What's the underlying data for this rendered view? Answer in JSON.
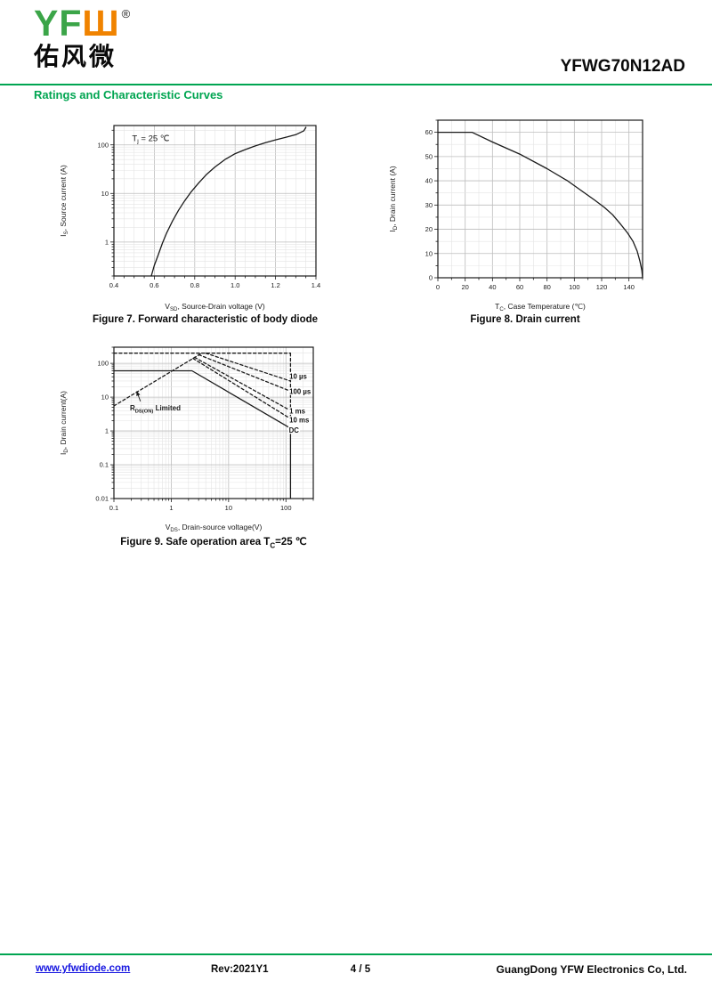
{
  "header": {
    "logo": {
      "yf": "YF",
      "w": "Ш",
      "registered": "®",
      "chinese": "佑风微"
    },
    "product": "YFWG70N12AD",
    "section_title": "Ratings and Characteristic Curves"
  },
  "colors": {
    "logo_green": "#3BA548",
    "logo_orange": "#F08300",
    "accent_green": "#00A551",
    "link_blue": "#1414E0",
    "curve": "#1a1a1a"
  },
  "chart_data": [
    {
      "id": "figure7",
      "type": "line",
      "caption": "Figure 7. Forward characteristic of body diode",
      "xlabel": "V_{SD}, Source-Drain voltage (V)",
      "ylabel": "I_{S}, Source current (A)",
      "x_scale": "linear",
      "x_range": [
        0.4,
        1.4
      ],
      "x_grid": {
        "minor": 0.05,
        "major": 0.2
      },
      "x_ticks": {
        "values": [
          0.4,
          0.6,
          0.8,
          1.0,
          1.2,
          1.4
        ],
        "labels": [
          "0.4",
          "0.6",
          "0.8",
          "1.0",
          "1.2",
          "1.4"
        ]
      },
      "y_scale": "log",
      "y_range": [
        0.2,
        250
      ],
      "y_ticks": {
        "values": [
          1,
          10,
          100
        ],
        "labels": [
          "1",
          "10",
          "100"
        ]
      },
      "grid": true,
      "legend": "none",
      "annotations": [
        {
          "text": "T_{j} = 25 ℃",
          "x": 0.49,
          "y": 120,
          "size": 9.5
        }
      ],
      "series": [
        {
          "name": "body-diode-forward",
          "style": "solid",
          "points": [
            [
              0.585,
              0.2
            ],
            [
              0.6,
              0.33
            ],
            [
              0.62,
              0.55
            ],
            [
              0.64,
              0.95
            ],
            [
              0.66,
              1.5
            ],
            [
              0.69,
              2.7
            ],
            [
              0.72,
              4.5
            ],
            [
              0.75,
              7
            ],
            [
              0.78,
              10.5
            ],
            [
              0.82,
              16.5
            ],
            [
              0.86,
              25
            ],
            [
              0.9,
              35
            ],
            [
              0.95,
              50
            ],
            [
              1.0,
              66
            ],
            [
              1.05,
              80
            ],
            [
              1.1,
              95
            ],
            [
              1.15,
              111
            ],
            [
              1.2,
              127
            ],
            [
              1.25,
              143
            ],
            [
              1.3,
              162
            ],
            [
              1.34,
              195
            ],
            [
              1.35,
              230
            ]
          ]
        }
      ]
    },
    {
      "id": "figure8",
      "type": "line",
      "caption": "Figure 8. Drain current",
      "xlabel": "T_{C}, Case Temperature (℃)",
      "ylabel": "I_{D}, Drain current (A)",
      "x_scale": "linear",
      "x_range": [
        0,
        150
      ],
      "x_grid": {
        "minor": 10,
        "major": 20
      },
      "x_ticks": {
        "values": [
          0,
          20,
          40,
          60,
          80,
          100,
          120,
          140
        ],
        "labels": [
          "0",
          "20",
          "40",
          "60",
          "80",
          "100",
          "120",
          "140"
        ]
      },
      "y_scale": "linear",
      "y_range": [
        0,
        65
      ],
      "y_grid": {
        "minor": 5,
        "major": 10
      },
      "y_ticks": {
        "values": [
          0,
          10,
          20,
          30,
          40,
          50,
          60
        ],
        "labels": [
          "0",
          "10",
          "20",
          "30",
          "40",
          "50",
          "60"
        ]
      },
      "grid": true,
      "legend": "none",
      "annotations": [],
      "series": [
        {
          "name": "drain-current-derating",
          "style": "solid",
          "points": [
            [
              0,
              60
            ],
            [
              25,
              60
            ],
            [
              40,
              56
            ],
            [
              60,
              51
            ],
            [
              80,
              45
            ],
            [
              95,
              40
            ],
            [
              105,
              36
            ],
            [
              115,
              32
            ],
            [
              122,
              29
            ],
            [
              128,
              26
            ],
            [
              134,
              22
            ],
            [
              139,
              18.5
            ],
            [
              143,
              15
            ],
            [
              146,
              11
            ],
            [
              148,
              7
            ],
            [
              149.5,
              3
            ],
            [
              150,
              0
            ]
          ]
        }
      ]
    },
    {
      "id": "figure9",
      "type": "line",
      "caption": "Figure 9. Safe operation area T_{C}=25 ℃",
      "xlabel": "V_{DS}, Drain-source voltage(V)",
      "ylabel": "I_{D}, Drain current(A)",
      "x_scale": "log",
      "x_range": [
        0.1,
        300
      ],
      "x_ticks": {
        "values": [
          0.1,
          1,
          10,
          100
        ],
        "labels": [
          "0.1",
          "1",
          "10",
          "100"
        ]
      },
      "y_scale": "log",
      "y_range": [
        0.01,
        300
      ],
      "y_ticks": {
        "values": [
          0.01,
          0.1,
          1,
          10,
          100
        ],
        "labels": [
          "0.01",
          "0.1",
          "1",
          "10",
          "100"
        ]
      },
      "grid": true,
      "legend": "inline-right",
      "annotations": [
        {
          "text": "R_{DS(ON)} Limited",
          "x": 0.19,
          "y": 4,
          "size": 8,
          "bold": true,
          "arrow": {
            "x1": 0.29,
            "y1": 7.5,
            "x2": 0.25,
            "y2": 15
          }
        }
      ],
      "line_labels": [
        {
          "text": "10 µs",
          "x": 115,
          "y": 40
        },
        {
          "text": "100 µs",
          "x": 115,
          "y": 14.5
        },
        {
          "text": "1 ms",
          "x": 115,
          "y": 3.8
        },
        {
          "text": "10 ms",
          "x": 115,
          "y": 2.1
        },
        {
          "text": "DC",
          "x": 113,
          "y": 1.05
        }
      ],
      "series": [
        {
          "name": "peak-current-limit",
          "style": "dashed",
          "points": [
            [
              0.1,
              200
            ],
            [
              120,
              200
            ]
          ]
        },
        {
          "name": "voltage-limit",
          "style": "dashed",
          "points": [
            [
              120,
              200
            ],
            [
              120,
              2.2
            ]
          ]
        },
        {
          "name": "rdson-limit",
          "style": "dashed",
          "points": [
            [
              0.1,
              5.5
            ],
            [
              3.4,
              200
            ]
          ]
        },
        {
          "name": "pulse-10us",
          "style": "dashed",
          "points": [
            [
              4.0,
              200
            ],
            [
              120,
              30
            ]
          ]
        },
        {
          "name": "pulse-100us",
          "style": "dashed",
          "points": [
            [
              3.0,
              180
            ],
            [
              120,
              15
            ]
          ]
        },
        {
          "name": "pulse-1ms",
          "style": "dashed",
          "points": [
            [
              2.55,
              150
            ],
            [
              120,
              4
            ]
          ]
        },
        {
          "name": "pulse-10ms",
          "style": "dashed",
          "points": [
            [
              2.4,
              140
            ],
            [
              120,
              2.3
            ]
          ]
        },
        {
          "name": "dc",
          "style": "solid",
          "points": [
            [
              0.1,
              60
            ],
            [
              2.3,
              60
            ],
            [
              120,
              1.2
            ],
            [
              120,
              0.01
            ]
          ]
        }
      ]
    }
  ],
  "footer": {
    "website": "www.yfwdiode.com",
    "revision": "Rev:2021Y1",
    "page": "4 / 5",
    "company": "GuangDong YFW Electronics Co, Ltd."
  }
}
